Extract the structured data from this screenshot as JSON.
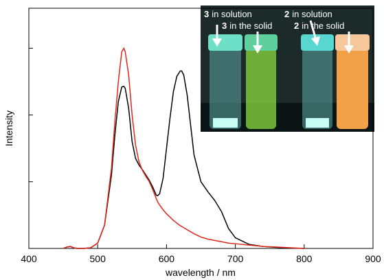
{
  "chart_data": {
    "type": "line",
    "x_label": "wavelength / nm",
    "y_label": "Intensity",
    "x": [
      450,
      455,
      460,
      465,
      470,
      480,
      490,
      500,
      510,
      520,
      525,
      530,
      535,
      538,
      540,
      545,
      550,
      555,
      560,
      565,
      570,
      575,
      580,
      585,
      587,
      590,
      595,
      600,
      605,
      610,
      615,
      620,
      622,
      625,
      630,
      635,
      640,
      650,
      660,
      670,
      680,
      690,
      700,
      720,
      740,
      760,
      780,
      800
    ],
    "series": [
      {
        "color": "#000000",
        "values": [
          0,
          0.02,
          0.03,
          0.01,
          0,
          0,
          0.01,
          0.08,
          0.35,
          1.1,
          1.7,
          2.2,
          2.42,
          2.43,
          2.4,
          2.1,
          1.6,
          1.35,
          1.25,
          1.18,
          1.1,
          1.02,
          0.92,
          0.8,
          0.79,
          0.82,
          1.05,
          1.5,
          1.95,
          2.35,
          2.58,
          2.66,
          2.66,
          2.6,
          2.3,
          1.85,
          1.4,
          1.0,
          0.85,
          0.72,
          0.55,
          0.3,
          0.16,
          0.06,
          0.03,
          0.015,
          0.005,
          0
        ]
      },
      {
        "color": "#e0251b",
        "values": [
          0,
          0.02,
          0.03,
          0.01,
          0,
          0,
          0.01,
          0.08,
          0.35,
          1.2,
          1.9,
          2.5,
          2.95,
          3.0,
          2.95,
          2.6,
          2.0,
          1.55,
          1.3,
          1.17,
          1.08,
          1.0,
          0.88,
          0.75,
          0.7,
          0.65,
          0.58,
          0.52,
          0.47,
          0.42,
          0.38,
          0.34,
          0.33,
          0.31,
          0.28,
          0.25,
          0.22,
          0.17,
          0.14,
          0.12,
          0.1,
          0.08,
          0.07,
          0.05,
          0.03,
          0.02,
          0.01,
          0
        ]
      }
    ],
    "xlim": [
      400,
      900
    ],
    "xticks": [
      400,
      500,
      600,
      700,
      800,
      900
    ],
    "ylim": [
      0,
      3.6
    ],
    "yticks": [
      1,
      2,
      3
    ],
    "annotations": [
      {
        "bold": "3",
        "text": "in solution"
      },
      {
        "bold": "3",
        "text": "in the solid"
      },
      {
        "bold": "2",
        "text": "in solution"
      },
      {
        "bold": "2",
        "text": "in the solid"
      }
    ]
  }
}
